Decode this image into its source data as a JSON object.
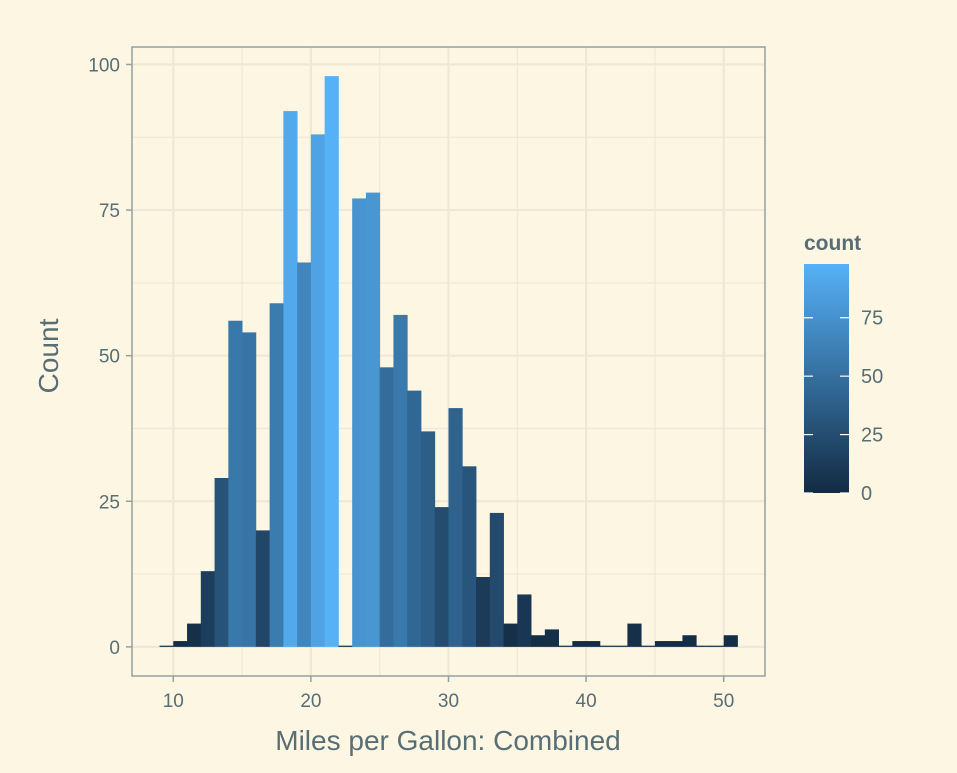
{
  "chart_data": {
    "type": "bar",
    "title": "",
    "xlabel": "Miles per Gallon: Combined",
    "ylabel": "Count",
    "xlim": [
      7,
      53
    ],
    "ylim": [
      -5,
      103
    ],
    "x_ticks": [
      10,
      20,
      30,
      40,
      50
    ],
    "y_ticks": [
      0,
      25,
      50,
      75,
      100
    ],
    "x_tick_labels": [
      "10",
      "20",
      "30",
      "40",
      "50"
    ],
    "y_tick_labels": [
      "0",
      "25",
      "50",
      "75",
      "100"
    ],
    "grid": true,
    "bin_width": 1,
    "bin_starts": [
      9,
      10,
      11,
      12,
      13,
      14,
      15,
      16,
      17,
      18,
      19,
      20,
      21,
      22,
      23,
      24,
      25,
      26,
      27,
      28,
      29,
      30,
      31,
      32,
      33,
      34,
      35,
      36,
      37,
      38,
      39,
      40,
      41,
      42,
      43,
      44,
      45,
      46,
      47,
      48,
      49,
      50
    ],
    "values": [
      0,
      1,
      4,
      13,
      29,
      56,
      54,
      20,
      59,
      92,
      66,
      88,
      98,
      0,
      77,
      78,
      48,
      57,
      44,
      37,
      24,
      41,
      31,
      12,
      23,
      4,
      9,
      2,
      3,
      0,
      1,
      1,
      0,
      0,
      4,
      0,
      1,
      1,
      2,
      0,
      0,
      2
    ],
    "legend": {
      "title": "count",
      "position": "right",
      "ticks": [
        0,
        25,
        50,
        75
      ],
      "tick_labels": [
        "0",
        "25",
        "50",
        "75"
      ],
      "range": [
        0,
        98
      ],
      "low_color": "#132b43",
      "high_color": "#56b1f7"
    }
  },
  "colors": {
    "background": "#fdf6e3",
    "grid": "#eee8d5",
    "text": "#586e75",
    "panel_border": "#93a1a1"
  }
}
